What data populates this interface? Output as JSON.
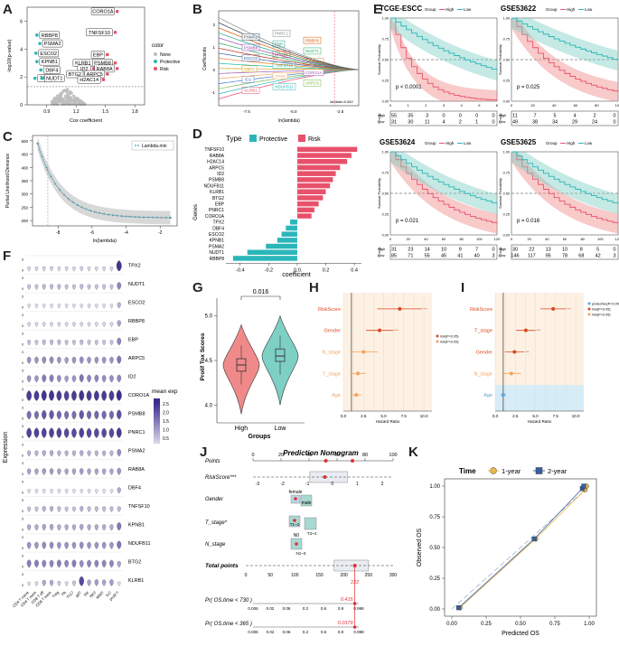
{
  "panel_labels": [
    "A",
    "B",
    "C",
    "D",
    "E",
    "F",
    "G",
    "H",
    "I",
    "J",
    "K"
  ],
  "colors": {
    "risk": "#e8516b",
    "protective": "#2bb6b9",
    "none": "#bdbdbd",
    "high": "#f08a8a",
    "low": "#7ecfc4",
    "orange": "#f5a25a",
    "lightblue": "#d6ecf7",
    "violet": "#6a5fb0",
    "gold": "#e8b64b",
    "navy": "#3a5f9e"
  },
  "chart_data": [
    {
      "id": "A",
      "type": "scatter",
      "title": "",
      "xlabel": "Cox coefficient",
      "ylabel": "-log10(p-value)",
      "xticks": [
        "0.9",
        "1.2",
        "1.5",
        "1.8"
      ],
      "yticks": [
        "0",
        "2",
        "4",
        "6"
      ],
      "xlim": [
        0.7,
        1.9
      ],
      "ylim": [
        0,
        7
      ],
      "legend_title": "color",
      "legend": [
        "None",
        "Protective",
        "Risk"
      ],
      "labeled_genes": [
        {
          "gene": "CORO1A",
          "x": 1.62,
          "y": 6.7,
          "group": "Risk"
        },
        {
          "gene": "TNFSF10",
          "x": 1.6,
          "y": 5.2,
          "group": "Risk"
        },
        {
          "gene": "RBBP8",
          "x": 0.8,
          "y": 5.0,
          "group": "Protective"
        },
        {
          "gene": "PSMA2",
          "x": 0.83,
          "y": 4.4,
          "group": "Protective"
        },
        {
          "gene": "ESCO2",
          "x": 0.79,
          "y": 3.7,
          "group": "Protective"
        },
        {
          "gene": "KPNB1",
          "x": 0.8,
          "y": 3.1,
          "group": "Protective"
        },
        {
          "gene": "DBF4",
          "x": 0.84,
          "y": 2.5,
          "group": "Protective"
        },
        {
          "gene": "TPX2",
          "x": 0.78,
          "y": 1.9,
          "group": "Protective"
        },
        {
          "gene": "NUDT1",
          "x": 0.85,
          "y": 1.9,
          "group": "Protective"
        },
        {
          "gene": "EBP",
          "x": 1.52,
          "y": 3.6,
          "group": "Risk"
        },
        {
          "gene": "KLRB1",
          "x": 1.4,
          "y": 3.0,
          "group": "Risk"
        },
        {
          "gene": "PSMB8",
          "x": 1.6,
          "y": 3.0,
          "group": "Risk"
        },
        {
          "gene": "ID2",
          "x": 1.38,
          "y": 2.6,
          "group": "Risk"
        },
        {
          "gene": "RAB8A",
          "x": 1.62,
          "y": 2.6,
          "group": "Risk"
        },
        {
          "gene": "BTG2",
          "x": 1.3,
          "y": 2.2,
          "group": "Risk"
        },
        {
          "gene": "ARPC5",
          "x": 1.52,
          "y": 2.2,
          "group": "Risk"
        },
        {
          "gene": "H2AC14",
          "x": 1.48,
          "y": 1.8,
          "group": "Risk"
        }
      ]
    },
    {
      "id": "B",
      "type": "line",
      "xlabel": "ln(lambda)",
      "ylabel": "Coefficients",
      "xticks": [
        "-7.5",
        "-5.0",
        "-2.5"
      ],
      "yticks": [
        "-1",
        "0",
        "1",
        "2"
      ],
      "annotation": "lambda=0.062",
      "line_labels": [
        "KLRB1",
        "NDUFB11",
        "ARPC5",
        "ID2",
        "TPX2",
        "CORO1A",
        "DBF4",
        "TNFSF10",
        "H2AC14",
        "ESCO2",
        "KPNB1",
        "NUDT1",
        "PSMB8",
        "EBP",
        "RBBP8",
        "PSMA2",
        "PNRC1"
      ]
    },
    {
      "id": "C",
      "type": "line",
      "xlabel": "ln(lambda)",
      "ylabel": "Partial Likelihood Deviance",
      "xticks": [
        "-8",
        "-6",
        "-4",
        "-2"
      ],
      "yticks": [
        "200",
        "250",
        "300",
        "350",
        "400",
        "450",
        "500"
      ],
      "legend": "Lambda.min",
      "ylim": [
        180,
        520
      ]
    },
    {
      "id": "D",
      "type": "bar",
      "title": "Type",
      "legend": [
        "Protective",
        "Risk"
      ],
      "xlabel": "coefficient",
      "ylabel": "Genes",
      "xticks": [
        "-0.4",
        "-0.2",
        "0.0",
        "0.2",
        "0.4"
      ],
      "xlim": [
        -0.5,
        0.45
      ],
      "categories": [
        "TNFSF10",
        "RAB8A",
        "H2AC14",
        "ARPC5",
        "ID2",
        "PSMB8",
        "NDUFB11",
        "KLRB1",
        "BTG2",
        "EBP",
        "PNRC1",
        "CORO1A",
        "TPX2",
        "DBF4",
        "ESCO2",
        "KPNB1",
        "PSMA2",
        "NUDT1",
        "RBBP8"
      ],
      "values": [
        0.42,
        0.38,
        0.35,
        0.3,
        0.27,
        0.25,
        0.23,
        0.2,
        0.18,
        0.15,
        0.12,
        0.1,
        -0.05,
        -0.08,
        -0.11,
        -0.14,
        -0.22,
        -0.35,
        -0.45
      ]
    },
    {
      "id": "E",
      "type": "line",
      "legend_title": "Group",
      "legend": [
        "High",
        "Low"
      ],
      "xlabel": "Time",
      "ylabel": "Survival Probability",
      "plots": [
        {
          "title": "TCGE-ESCC",
          "pvalue": "p < 0.0001",
          "xticks": [
            "0",
            "1",
            "2",
            "3",
            "4",
            "5",
            "6"
          ],
          "risk_high": [
            "55",
            "35",
            "3",
            "0",
            "0",
            "0",
            "0"
          ],
          "risk_low": [
            "31",
            "30",
            "11",
            "4",
            "2",
            "1",
            "0"
          ]
        },
        {
          "title": "GSE53622",
          "pvalue": "p = 0.025",
          "xticks": [
            "0",
            "20",
            "40",
            "60",
            "80",
            "100"
          ],
          "risk_high": [
            "11",
            "7",
            "5",
            "4",
            "2",
            "0"
          ],
          "risk_low": [
            "49",
            "38",
            "34",
            "29",
            "24",
            "0"
          ]
        },
        {
          "title": "GSE53624",
          "pvalue": "p = 0.021",
          "xticks": [
            "0",
            "20",
            "40",
            "60",
            "80",
            "100",
            "120"
          ],
          "risk_high": [
            "31",
            "23",
            "14",
            "10",
            "9",
            "7",
            "0"
          ],
          "risk_low": [
            "85",
            "71",
            "55",
            "45",
            "41",
            "40",
            "3"
          ]
        },
        {
          "title": "GSE53625",
          "pvalue": "p = 0.016",
          "xticks": [
            "0",
            "20",
            "40",
            "60",
            "80",
            "100",
            "120"
          ],
          "risk_high": [
            "30",
            "22",
            "13",
            "10",
            "8",
            "5",
            "0"
          ],
          "risk_low": [
            "146",
            "117",
            "95",
            "78",
            "68",
            "42",
            "3"
          ]
        }
      ],
      "yticks": [
        "0.00",
        "0.25",
        "0.50",
        "0.75",
        "1.00"
      ]
    },
    {
      "id": "F",
      "type": "heatmap",
      "ylabel": "Expression",
      "legend_title": "mean exp",
      "legend_ticks": [
        "2.5",
        "2.0",
        "1.5",
        "1.0",
        "0.5"
      ],
      "genes": [
        "TPX2",
        "NUDT1",
        "ESCO2",
        "RBBP8",
        "EBP",
        "ARPC5",
        "ID2",
        "CORO1A",
        "PSMB8",
        "PNRC1",
        "PSMA2",
        "RAB8A",
        "DBF4",
        "TNFSF10",
        "KPNB1",
        "NDUFB11",
        "BTG2",
        "KLRB1"
      ],
      "cell_types": [
        "CD4 T naive",
        "CD4 T mem",
        "CD8 T eff",
        "CD8 T mem",
        "Treg",
        "Tfh",
        "Th17",
        "gdT",
        "NK",
        "NKT",
        "MAIT",
        "ILC",
        "prolif T"
      ],
      "mean_expression": [
        [
          0.3,
          0.3,
          0.4,
          0.4,
          0.3,
          0.3,
          0.3,
          0.4,
          0.3,
          0.3,
          0.3,
          0.3,
          2.5
        ],
        [
          0.6,
          0.6,
          0.7,
          0.7,
          0.7,
          0.6,
          0.6,
          0.7,
          0.6,
          0.6,
          0.6,
          0.6,
          1.4
        ],
        [
          0.2,
          0.2,
          0.2,
          0.2,
          0.2,
          0.2,
          0.2,
          0.2,
          0.2,
          0.2,
          0.2,
          0.2,
          0.8
        ],
        [
          0.3,
          0.3,
          0.3,
          0.3,
          0.3,
          0.3,
          0.3,
          0.3,
          0.3,
          0.3,
          0.3,
          0.3,
          1.0
        ],
        [
          0.6,
          0.6,
          0.7,
          0.7,
          0.7,
          0.6,
          0.6,
          0.7,
          0.6,
          0.6,
          0.6,
          0.6,
          1.4
        ],
        [
          1.2,
          1.2,
          1.3,
          1.3,
          1.2,
          1.1,
          1.2,
          1.3,
          1.2,
          1.2,
          1.2,
          1.2,
          1.6
        ],
        [
          1.2,
          1.2,
          1.5,
          1.5,
          1.3,
          1.1,
          1.2,
          1.6,
          1.4,
          1.4,
          1.3,
          1.3,
          1.4
        ],
        [
          2.4,
          2.4,
          2.5,
          2.5,
          2.4,
          2.3,
          2.4,
          2.5,
          2.4,
          2.4,
          2.4,
          2.4,
          2.6
        ],
        [
          1.7,
          1.7,
          2.0,
          2.0,
          1.8,
          1.7,
          1.7,
          2.0,
          1.8,
          1.8,
          1.8,
          1.8,
          2.1
        ],
        [
          2.3,
          2.3,
          2.3,
          2.3,
          2.3,
          2.2,
          2.2,
          2.3,
          2.2,
          2.2,
          2.2,
          2.2,
          2.4
        ],
        [
          0.8,
          0.8,
          0.9,
          0.9,
          0.8,
          0.8,
          0.8,
          0.9,
          0.8,
          0.8,
          0.8,
          0.8,
          1.3
        ],
        [
          1.0,
          1.0,
          1.1,
          1.1,
          1.0,
          1.0,
          1.0,
          1.1,
          1.0,
          1.0,
          1.0,
          1.0,
          1.2
        ],
        [
          0.2,
          0.2,
          0.2,
          0.2,
          0.2,
          0.2,
          0.2,
          0.2,
          0.2,
          0.2,
          0.2,
          0.2,
          0.9
        ],
        [
          0.6,
          0.6,
          0.8,
          0.8,
          0.7,
          0.6,
          0.6,
          0.8,
          0.7,
          0.7,
          0.7,
          0.7,
          0.7
        ],
        [
          0.9,
          0.9,
          1.0,
          1.0,
          0.9,
          0.9,
          0.9,
          1.0,
          0.9,
          0.9,
          0.9,
          0.9,
          1.6
        ],
        [
          1.2,
          1.2,
          1.3,
          1.3,
          1.2,
          1.2,
          1.2,
          1.3,
          1.2,
          1.2,
          1.2,
          1.2,
          1.6
        ],
        [
          1.5,
          1.5,
          1.4,
          1.4,
          1.5,
          1.4,
          1.5,
          1.3,
          1.4,
          1.4,
          1.4,
          1.4,
          1.0
        ],
        [
          0.2,
          0.3,
          0.9,
          0.9,
          0.5,
          0.3,
          0.6,
          2.2,
          1.0,
          1.1,
          1.0,
          1.1,
          0.2
        ]
      ]
    },
    {
      "id": "G",
      "type": "box",
      "xlabel": "Groups",
      "ylabel": "Prolif Tox Scores",
      "categories": [
        "High",
        "Low"
      ],
      "pvalue": "0.016",
      "yticks": [
        "4.0",
        "4.5",
        "5.0"
      ],
      "ylim": [
        3.8,
        5.2
      ],
      "medians": [
        4.45,
        4.55
      ],
      "q1": [
        4.38,
        4.49
      ],
      "q3": [
        4.52,
        4.63
      ]
    },
    {
      "id": "H",
      "type": "scatter",
      "title": "Forest plot",
      "xlabel": "Hazard Ratio",
      "xticks": [
        "0.0",
        "2.5",
        "5.0",
        "7.5",
        "10.0"
      ],
      "xlim": [
        0,
        11
      ],
      "variables": [
        "RiskScore",
        "Gender",
        "N_stage",
        "T_stage",
        "Age"
      ],
      "hr": [
        7.0,
        4.5,
        2.5,
        1.8,
        1.6
      ],
      "ci_low": [
        4.2,
        2.8,
        0.8,
        0.8,
        0.9
      ],
      "ci_high": [
        9.8,
        6.2,
        4.3,
        2.8,
        2.2
      ],
      "legend": [
        "risk(P<0.05)",
        "risk(P>0.05)"
      ]
    },
    {
      "id": "I",
      "type": "scatter",
      "title": "Forest plot",
      "xlabel": "Hazard Ratio",
      "xticks": [
        "0.0",
        "2.5",
        "5.0",
        "7.5",
        "10.0"
      ],
      "xlim": [
        0,
        11
      ],
      "variables": [
        "RiskScore",
        "T_stage",
        "Gender",
        "N_stage",
        "Age"
      ],
      "hr": [
        7.2,
        3.8,
        2.4,
        2.0,
        1.0
      ],
      "ci_low": [
        5.6,
        2.6,
        1.2,
        0.8,
        0.7
      ],
      "ci_high": [
        8.8,
        5.0,
        3.6,
        3.2,
        1.3
      ],
      "legend": [
        "protective(P<0.05)",
        "risk(P<0.05)",
        "risk(P>0.05)"
      ]
    },
    {
      "id": "J",
      "type": "table",
      "title": "Prediction Nomogram",
      "rows": [
        "Points",
        "RiskScore***",
        "Gender",
        "T_stage*",
        "N_stage",
        "Total points",
        "Pr( OS.time < 730 )",
        "Pr( OS.time < 365 )"
      ],
      "points_ticks": [
        "0",
        "20",
        "40",
        "60",
        "80",
        "100"
      ],
      "riskscore_ticks": [
        "-3",
        "-2",
        "-1",
        "0",
        "1",
        "2"
      ],
      "total_ticks": [
        "0",
        "50",
        "100",
        "150",
        "200",
        "250",
        "300"
      ],
      "gender_labels": [
        "female",
        "male"
      ],
      "tstage_labels": [
        "T1~2",
        "T3~4"
      ],
      "nstage_labels": [
        "N0",
        "N1~3"
      ],
      "pr730_ticks": [
        "0.006",
        "0.02",
        "0.06",
        "0.2",
        "0.6",
        "0.9",
        "0.998"
      ],
      "pr365_ticks": [
        "0.006",
        "0.02",
        "0.06",
        "0.2",
        "0.6",
        "0.9",
        "0.998"
      ],
      "total_value": "222",
      "pr730_value": "0.415",
      "pr365_value": "0.0379"
    },
    {
      "id": "K",
      "type": "line",
      "legend_title": "Time",
      "legend": [
        "1-year",
        "2-year"
      ],
      "xlabel": "Predicted OS",
      "ylabel": "Observed OS",
      "xticks": [
        "0.00",
        "0.25",
        "0.50",
        "0.75",
        "1.00"
      ],
      "yticks": [
        "0.00",
        "0.25",
        "0.50",
        "0.75",
        "1.00"
      ],
      "series": [
        {
          "name": "1-year",
          "x": [
            0.06,
            0.61,
            0.97,
            0.98
          ],
          "y": [
            0.01,
            0.57,
            0.97,
            1.0
          ]
        },
        {
          "name": "2-year",
          "x": [
            0.05,
            0.6,
            0.95,
            0.96
          ],
          "y": [
            0.01,
            0.57,
            0.98,
            1.0
          ]
        }
      ]
    }
  ]
}
